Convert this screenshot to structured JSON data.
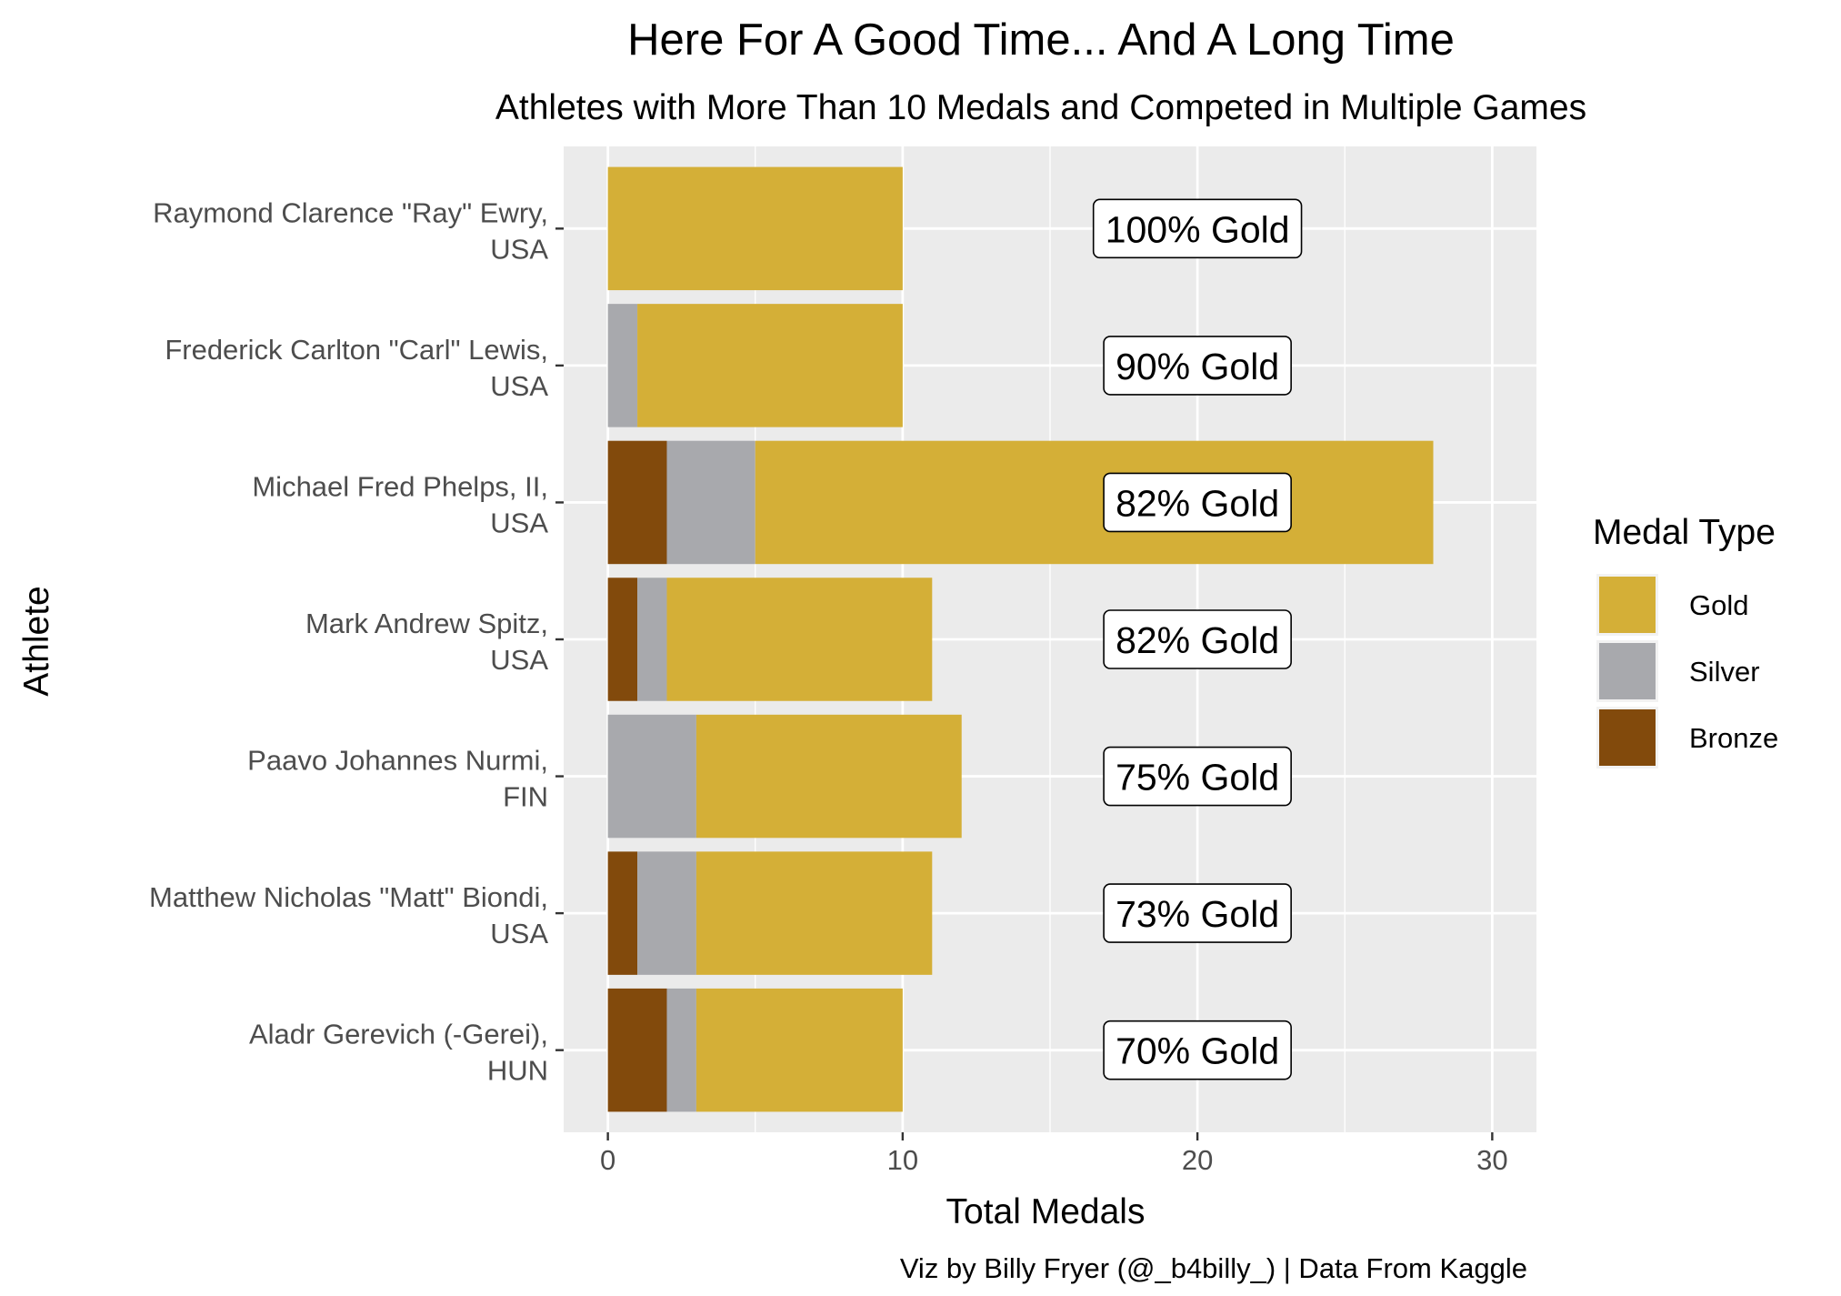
{
  "chart_data": {
    "type": "bar",
    "orientation": "horizontal",
    "stacked": true,
    "title": "Here For A Good Time... And A Long Time",
    "subtitle": "Athletes with More Than 10 Medals and Competed in Multiple Games",
    "xlabel": "Total Medals",
    "ylabel": "Athlete",
    "xlim": [
      -1.5,
      31.5
    ],
    "x_ticks": [
      0,
      10,
      20,
      30
    ],
    "grid": true,
    "legend": {
      "title": "Medal Type",
      "position": "right",
      "entries": [
        "Gold",
        "Silver",
        "Bronze"
      ]
    },
    "colors": {
      "Gold": "#D4AF37",
      "Silver": "#A8A9AD",
      "Bronze": "#824A0C",
      "panel": "#EBEBEB",
      "grid": "#FFFFFF"
    },
    "categories": [
      [
        "Raymond Clarence \"Ray\" Ewry,",
        "USA"
      ],
      [
        "Frederick Carlton \"Carl\" Lewis,",
        "USA"
      ],
      [
        "Michael Fred Phelps, II,",
        "USA"
      ],
      [
        "Mark Andrew Spitz,",
        "USA"
      ],
      [
        "Paavo Johannes Nurmi,",
        "FIN"
      ],
      [
        "Matthew Nicholas \"Matt\" Biondi,",
        "USA"
      ],
      [
        "Aladr Gerevich (-Gerei),",
        "HUN"
      ]
    ],
    "series": [
      {
        "name": "Bronze",
        "values": [
          0,
          0,
          2,
          1,
          0,
          1,
          2
        ]
      },
      {
        "name": "Silver",
        "values": [
          0,
          1,
          3,
          1,
          3,
          2,
          1
        ]
      },
      {
        "name": "Gold",
        "values": [
          10,
          9,
          23,
          9,
          9,
          8,
          7
        ]
      }
    ],
    "annotations": {
      "x": 20,
      "labels": [
        "100% Gold",
        "90% Gold",
        "82% Gold",
        "82% Gold",
        "75% Gold",
        "73% Gold",
        "70% Gold"
      ]
    },
    "caption": "Viz by Billy Fryer (@_b4billy_) | Data From Kaggle"
  }
}
